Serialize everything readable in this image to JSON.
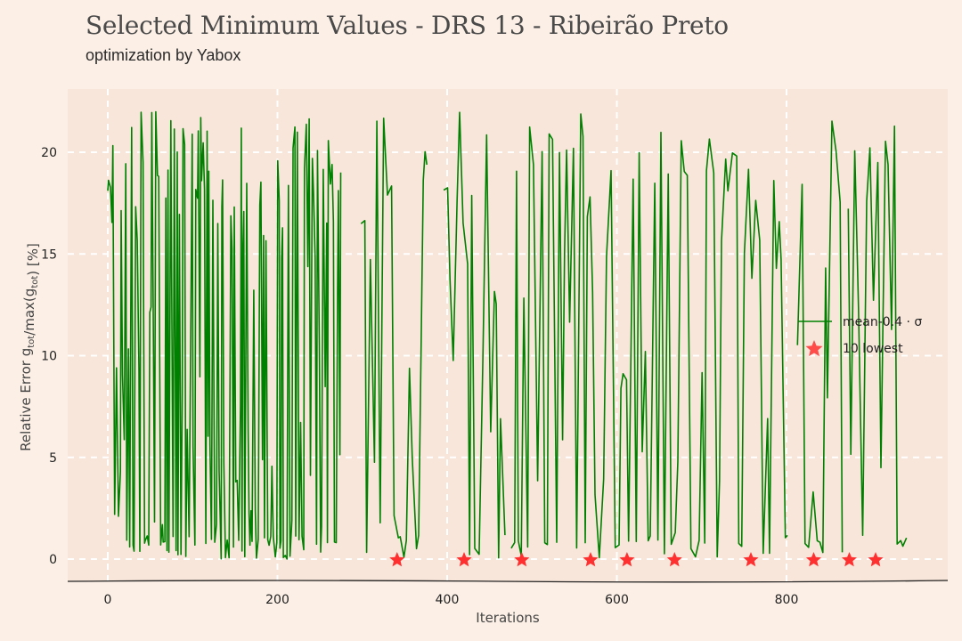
{
  "header": {
    "title": "Selected Minimum Values - DRS 13 - Ribeirão Preto",
    "subtitle": "optimization by Yabox"
  },
  "colors": {
    "background": "#fcefe6",
    "plot_area": "#f9e6da",
    "grid": "#ffffff",
    "line": "#008000",
    "marker": "#ff3030"
  },
  "chart_data": {
    "type": "line",
    "title": "",
    "xlabel": "Iterations",
    "ylabel": "Relative Error g_tot/max(g_tot) [%]",
    "xlim": [
      -5,
      975
    ],
    "ylim": [
      -1,
      23
    ],
    "x_ticks": [
      0,
      200,
      400,
      600,
      800
    ],
    "y_ticks": [
      0,
      5,
      10,
      15,
      20
    ],
    "grid": true,
    "legend_position": "center-right",
    "legend": [
      "mean-0.4 · σ",
      "10 lowest"
    ],
    "series": [
      {
        "name": "mean-0.4 · σ",
        "style": "line",
        "segments": [
          [
            0,
            950
          ],
          [
            395,
            410
          ],
          [
            415,
            470
          ],
          [
            475,
            570
          ],
          [
            575,
            615
          ],
          [
            620,
            740
          ],
          [
            745,
            830
          ],
          [
            835,
            870
          ],
          [
            875,
            905
          ],
          [
            910,
            945
          ]
        ],
        "gaps": [
          [
            275,
            298
          ],
          [
            377,
            395
          ],
          [
            470,
            475
          ],
          [
            802,
            812
          ],
          [
            866,
            872
          ]
        ],
        "value_range": [
          0,
          22
        ]
      },
      {
        "name": "10 lowest",
        "style": "star",
        "x": [
          341,
          420,
          488,
          569,
          612,
          668,
          758,
          832,
          874,
          905
        ],
        "y": [
          0,
          0,
          0,
          0,
          0,
          0,
          0,
          0,
          0,
          0
        ]
      }
    ]
  }
}
